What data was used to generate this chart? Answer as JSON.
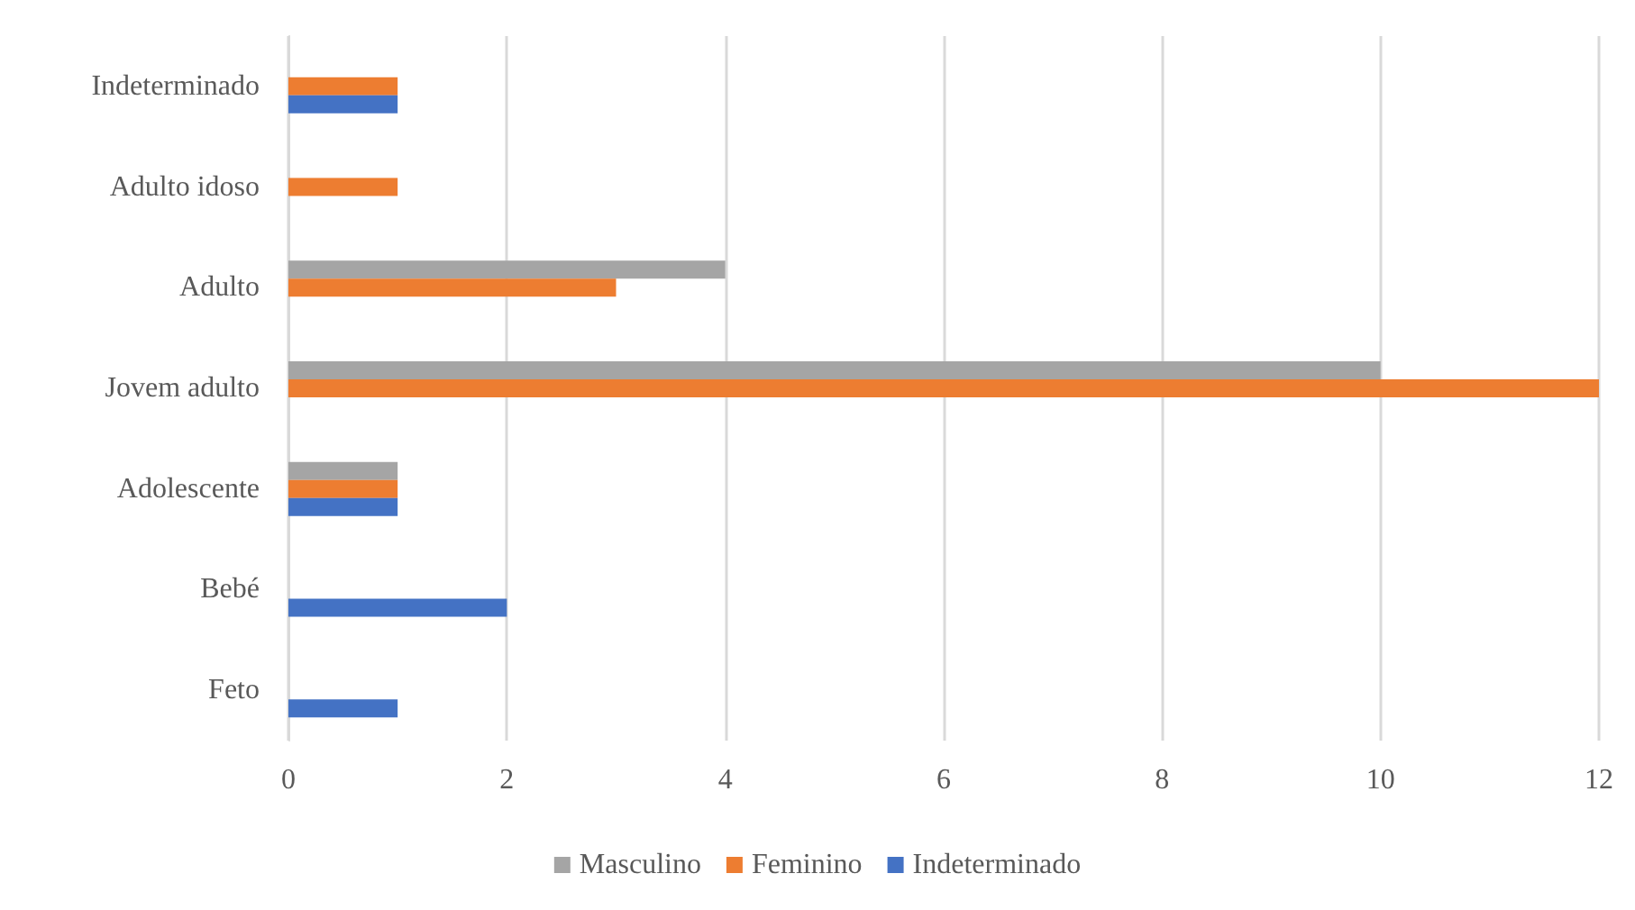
{
  "chart_data": {
    "type": "bar",
    "orientation": "horizontal",
    "categories": [
      "Indeterminado",
      "Adulto idoso",
      "Adulto",
      "Jovem adulto",
      "Adolescente",
      "Bebé",
      "Feto"
    ],
    "series": [
      {
        "name": "Masculino",
        "color": "#a5a5a5",
        "values": [
          0,
          0,
          4,
          10,
          1,
          0,
          0
        ]
      },
      {
        "name": "Feminino",
        "color": "#ed7d31",
        "values": [
          1,
          1,
          3,
          12,
          1,
          0,
          0
        ]
      },
      {
        "name": "Indeterminado",
        "color": "#4472c4",
        "values": [
          1,
          0,
          0,
          0,
          1,
          2,
          1
        ]
      }
    ],
    "xlim": [
      0,
      12
    ],
    "xticks": [
      0,
      2,
      4,
      6,
      8,
      10,
      12
    ],
    "grid": "x",
    "legend": "bottom"
  }
}
